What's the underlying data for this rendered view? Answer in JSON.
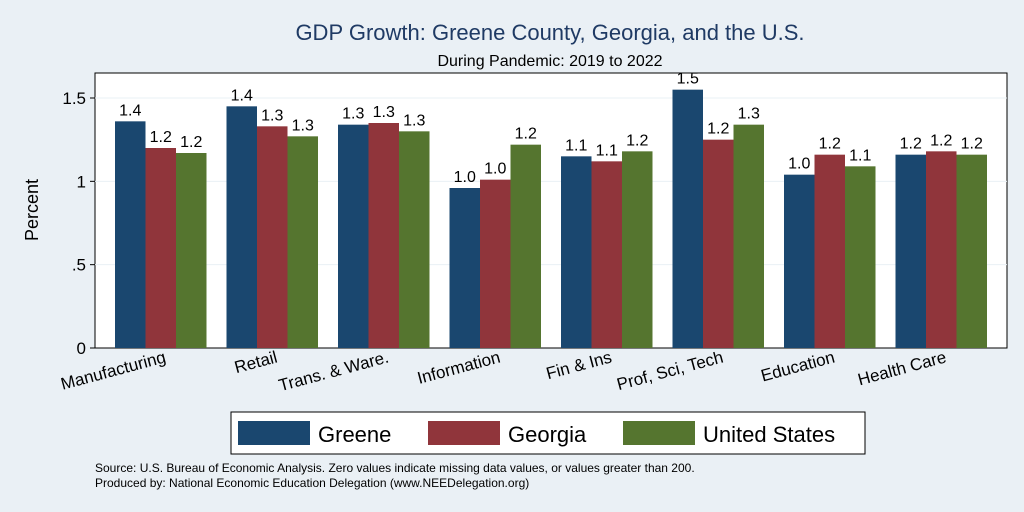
{
  "chart_data": {
    "type": "bar",
    "title": "GDP Growth: Greene County, Georgia, and the U.S.",
    "subtitle": "During Pandemic: 2019 to 2022",
    "ylabel": "Percent",
    "ylim": [
      0,
      1.65
    ],
    "yticks": [
      0,
      0.5,
      1,
      1.5
    ],
    "ytick_labels": [
      "0",
      ".5",
      "1",
      "1.5"
    ],
    "grid": true,
    "legend_position": "bottom",
    "categories": [
      "Manufacturing",
      "Retail",
      "Trans. & Ware.",
      "Information",
      "Fin & Ins",
      "Prof, Sci, Tech",
      "Education",
      "Health Care"
    ],
    "series": [
      {
        "name": "Greene",
        "color": "#1a476f",
        "values": [
          1.36,
          1.45,
          1.34,
          0.96,
          1.15,
          1.55,
          1.04,
          1.16
        ],
        "labels": [
          "1.4",
          "1.4",
          "1.3",
          "1.0",
          "1.1",
          "1.5",
          "1.0",
          "1.2"
        ]
      },
      {
        "name": "Georgia",
        "color": "#90353b",
        "values": [
          1.2,
          1.33,
          1.35,
          1.01,
          1.12,
          1.25,
          1.16,
          1.18
        ],
        "labels": [
          "1.2",
          "1.3",
          "1.3",
          "1.0",
          "1.1",
          "1.2",
          "1.2",
          "1.2"
        ]
      },
      {
        "name": "United States",
        "color": "#55752f",
        "values": [
          1.17,
          1.27,
          1.3,
          1.22,
          1.18,
          1.34,
          1.09,
          1.16
        ],
        "labels": [
          "1.2",
          "1.3",
          "1.3",
          "1.2",
          "1.2",
          "1.3",
          "1.1",
          "1.2"
        ]
      }
    ]
  },
  "notes": {
    "source": "Source: U.S. Bureau of Economic Analysis. Zero values indicate missing data values, or values greater than 200.",
    "produced_by": "Produced by: National Economic Education Delegation (www.NEEDelegation.org)"
  }
}
